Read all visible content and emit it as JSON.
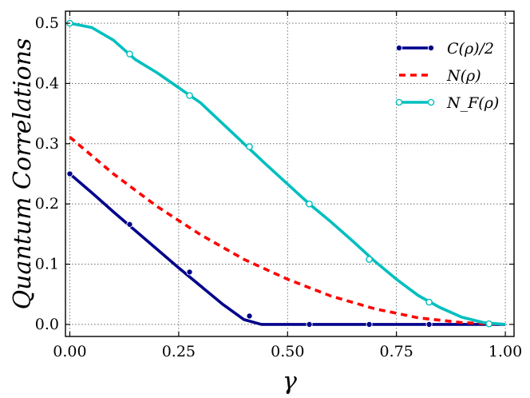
{
  "chart_data": {
    "type": "line",
    "title": "",
    "xlabel": "γ",
    "ylabel": "Quantum Correlations",
    "xlim": [
      -0.01,
      1.02
    ],
    "ylim": [
      -0.02,
      0.52
    ],
    "xticks": [
      0.0,
      0.25,
      0.5,
      0.75,
      1.0
    ],
    "xtick_labels": [
      "0.00",
      "0.25",
      "0.50",
      "0.75",
      "1.00"
    ],
    "yticks": [
      0.0,
      0.1,
      0.2,
      0.3,
      0.4,
      0.5
    ],
    "ytick_labels": [
      "0.0",
      "0.1",
      "0.2",
      "0.3",
      "0.4",
      "0.5"
    ],
    "grid": true,
    "legend_position": "top-right",
    "series": [
      {
        "name": "C(ρ)/2",
        "color": "#00008b",
        "style": "solid",
        "marker": "filled-circle",
        "x": [
          0.0,
          0.05,
          0.1,
          0.15,
          0.2,
          0.25,
          0.3,
          0.35,
          0.4,
          0.44,
          0.5,
          0.55,
          0.6,
          0.7,
          0.8,
          0.9,
          1.0
        ],
        "y": [
          0.25,
          0.219,
          0.187,
          0.156,
          0.125,
          0.094,
          0.064,
          0.034,
          0.008,
          0.0,
          0.0,
          0.0,
          0.0,
          0.0,
          0.0,
          0.0,
          0.0
        ],
        "markers_x": [
          0.0,
          0.1375,
          0.275,
          0.4125,
          0.55,
          0.6875,
          0.825,
          0.9625
        ],
        "markers_y": [
          0.25,
          0.166,
          0.087,
          0.014,
          0.0,
          0.0,
          0.0,
          0.0
        ]
      },
      {
        "name": "N(ρ)",
        "color": "#ff0000",
        "style": "dashed",
        "marker": "none",
        "x": [
          0.0,
          0.1,
          0.2,
          0.3,
          0.4,
          0.5,
          0.6,
          0.7,
          0.8,
          0.9,
          1.0
        ],
        "y": [
          0.311,
          0.25,
          0.196,
          0.149,
          0.108,
          0.075,
          0.047,
          0.026,
          0.011,
          0.003,
          0.0
        ]
      },
      {
        "name": "N_F(ρ)",
        "color": "#00bfbf",
        "style": "solid",
        "marker": "open-circle",
        "x": [
          0.0,
          0.05,
          0.1,
          0.15,
          0.2,
          0.25,
          0.3,
          0.35,
          0.4,
          0.45,
          0.5,
          0.55,
          0.6,
          0.65,
          0.7,
          0.75,
          0.8,
          0.85,
          0.9,
          0.95,
          1.0
        ],
        "y": [
          0.5,
          0.493,
          0.472,
          0.44,
          0.418,
          0.393,
          0.368,
          0.334,
          0.3,
          0.266,
          0.233,
          0.2,
          0.17,
          0.138,
          0.105,
          0.075,
          0.048,
          0.028,
          0.012,
          0.003,
          0.0
        ],
        "markers_x": [
          0.0,
          0.1375,
          0.275,
          0.4125,
          0.55,
          0.6875,
          0.825,
          0.9625
        ],
        "markers_y": [
          0.5,
          0.449,
          0.38,
          0.295,
          0.2,
          0.108,
          0.037,
          0.001
        ]
      }
    ]
  }
}
